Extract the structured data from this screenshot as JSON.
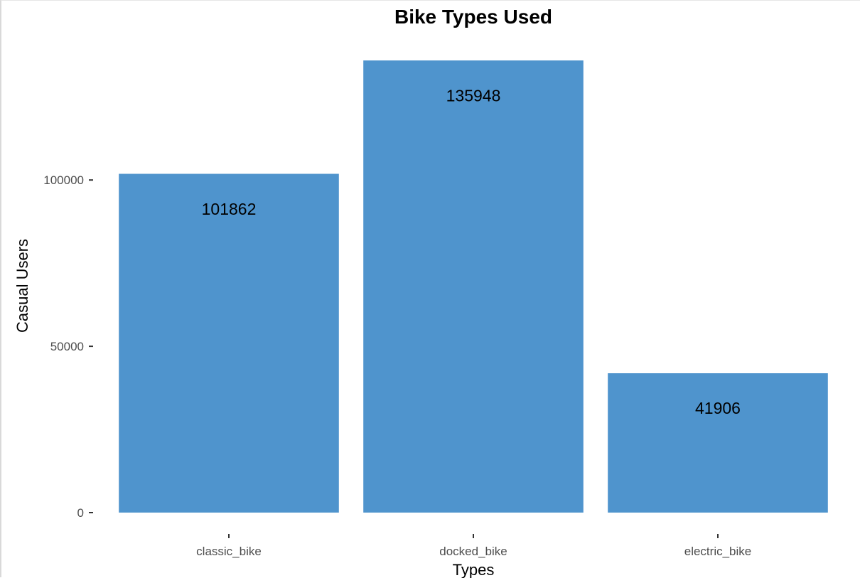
{
  "chart_data": {
    "type": "bar",
    "title": "Bike Types Used",
    "xlabel": "Types",
    "ylabel": "Casual Users",
    "categories": [
      "classic_bike",
      "docked_bike",
      "electric_bike"
    ],
    "values": [
      101862,
      135948,
      41906
    ],
    "data_labels": [
      "101862",
      "135948",
      "41906"
    ],
    "y_ticks": [
      0,
      50000,
      100000
    ],
    "y_tick_labels": [
      "0",
      "50000",
      "100000"
    ],
    "ylim": [
      0,
      135948
    ],
    "grid": false,
    "legend": "none",
    "bar_color": "#4f94cd"
  }
}
